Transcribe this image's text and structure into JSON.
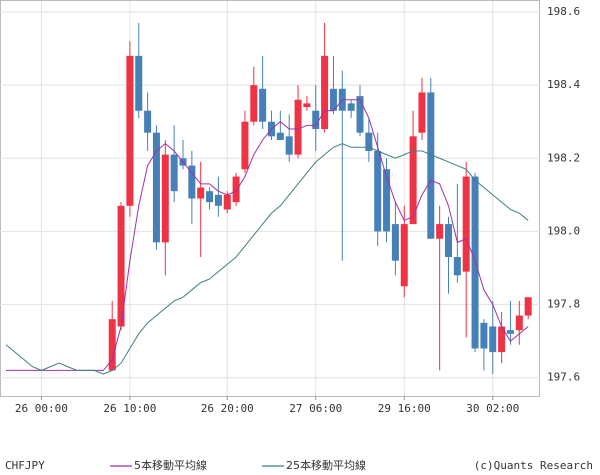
{
  "chart_data": {
    "type": "candlestick",
    "categories": [
      null,
      null,
      null,
      null,
      "26 00:00",
      null,
      null,
      null,
      null,
      null,
      null,
      null,
      null,
      null,
      "26 10:00",
      null,
      null,
      null,
      null,
      null,
      null,
      null,
      null,
      null,
      null,
      "26 20:00",
      null,
      null,
      null,
      null,
      null,
      null,
      null,
      null,
      null,
      "27 06:00",
      null,
      null,
      null,
      null,
      null,
      null,
      null,
      null,
      null,
      "29 16:00",
      null,
      null,
      null,
      null,
      null,
      null,
      null,
      null,
      null,
      "30 02:00",
      null,
      null,
      null,
      null
    ],
    "candles": {
      "up_color": "#ee3344",
      "down_color": "#4680b8",
      "open": [
        null,
        null,
        null,
        null,
        null,
        null,
        null,
        null,
        null,
        null,
        null,
        null,
        197.62,
        197.74,
        198.07,
        198.48,
        198.33,
        198.27,
        197.97,
        198.21,
        198.2,
        198.18,
        198.09,
        198.11,
        198.1,
        198.06,
        198.08,
        198.17,
        198.3,
        198.39,
        198.3,
        198.27,
        198.26,
        198.21,
        198.34,
        198.33,
        198.28,
        198.39,
        198.39,
        198.35,
        198.37,
        198.27,
        198.22,
        198.17,
        198.02,
        197.85,
        198.02,
        198.27,
        198.38,
        197.98,
        198.02,
        197.93,
        197.89,
        198.15,
        197.75,
        197.74,
        197.67,
        197.73,
        197.73,
        197.77
      ],
      "high": [
        null,
        null,
        null,
        null,
        null,
        null,
        null,
        null,
        null,
        null,
        null,
        null,
        197.81,
        198.08,
        198.52,
        198.57,
        198.38,
        198.29,
        198.25,
        198.29,
        198.25,
        198.22,
        198.19,
        198.12,
        198.15,
        198.11,
        198.16,
        198.33,
        198.45,
        198.48,
        198.33,
        198.33,
        198.32,
        198.4,
        198.37,
        198.4,
        198.57,
        198.48,
        198.44,
        198.36,
        198.4,
        198.31,
        198.27,
        198.2,
        198.08,
        198.07,
        198.33,
        198.42,
        198.42,
        198.07,
        198.04,
        198.13,
        198.19,
        198.16,
        197.76,
        197.81,
        197.78,
        197.81,
        197.81,
        197.82
      ],
      "low": [
        null,
        null,
        null,
        null,
        null,
        null,
        null,
        null,
        null,
        null,
        null,
        null,
        197.62,
        197.73,
        198.04,
        198.31,
        198.22,
        197.95,
        197.88,
        198.08,
        198.17,
        198.02,
        197.93,
        198.06,
        198.04,
        198.05,
        198.07,
        198.16,
        198.29,
        198.28,
        198.25,
        198.25,
        198.19,
        198.2,
        198.33,
        198.22,
        198.27,
        198.32,
        197.92,
        198.31,
        198.26,
        198.19,
        197.96,
        197.97,
        197.88,
        197.82,
        198.02,
        198.25,
        197.98,
        197.62,
        197.83,
        197.86,
        197.71,
        197.67,
        197.62,
        197.61,
        197.64,
        197.69,
        197.69,
        197.76
      ],
      "close": [
        null,
        null,
        null,
        null,
        null,
        null,
        null,
        null,
        null,
        null,
        null,
        null,
        197.76,
        198.07,
        198.48,
        198.33,
        198.27,
        197.97,
        198.21,
        198.11,
        198.18,
        198.09,
        198.12,
        198.08,
        198.07,
        198.1,
        198.15,
        198.3,
        198.4,
        198.3,
        198.26,
        198.25,
        198.21,
        198.36,
        198.35,
        198.28,
        198.48,
        198.33,
        198.33,
        198.33,
        198.27,
        198.22,
        198.0,
        198.0,
        197.92,
        198.02,
        198.26,
        198.38,
        197.98,
        198.02,
        197.93,
        197.88,
        198.15,
        197.68,
        197.68,
        197.67,
        197.74,
        197.72,
        197.77,
        197.82
      ]
    },
    "series": [
      {
        "name": "5本移動平均線",
        "color": "#a030a8",
        "values": [
          197.62,
          197.62,
          197.62,
          197.62,
          197.62,
          197.62,
          197.62,
          197.62,
          197.62,
          197.62,
          197.62,
          197.62,
          197.65,
          197.74,
          197.92,
          198.07,
          198.18,
          198.22,
          198.24,
          198.22,
          198.19,
          198.16,
          198.13,
          198.13,
          198.11,
          198.1,
          198.11,
          198.15,
          198.21,
          198.25,
          198.28,
          198.3,
          198.28,
          198.28,
          198.29,
          198.29,
          198.33,
          198.33,
          198.36,
          198.36,
          198.36,
          198.31,
          198.23,
          198.15,
          198.08,
          198.03,
          198.04,
          198.1,
          198.14,
          198.13,
          198.07,
          197.97,
          197.98,
          197.92,
          197.84,
          197.8,
          197.74,
          197.7,
          197.72,
          197.74
        ]
      },
      {
        "name": "25本移動平均線",
        "color": "#3a8080",
        "values": [
          197.69,
          197.67,
          197.65,
          197.63,
          197.62,
          197.63,
          197.64,
          197.63,
          197.62,
          197.62,
          197.62,
          197.61,
          197.62,
          197.64,
          197.68,
          197.72,
          197.75,
          197.77,
          197.79,
          197.81,
          197.82,
          197.84,
          197.86,
          197.87,
          197.89,
          197.91,
          197.93,
          197.96,
          197.99,
          198.02,
          198.05,
          198.07,
          198.1,
          198.13,
          198.16,
          198.19,
          198.21,
          198.23,
          198.24,
          198.23,
          198.23,
          198.23,
          198.22,
          198.21,
          198.2,
          198.21,
          198.22,
          198.22,
          198.21,
          198.2,
          198.19,
          198.18,
          198.17,
          198.14,
          198.12,
          198.1,
          198.08,
          198.06,
          198.05,
          198.03
        ]
      }
    ],
    "ylim": [
      197.55,
      198.63
    ],
    "yticks": [
      197.6,
      197.8,
      {
        "value": 198,
        "label": "198.0"
      },
      198.2,
      198.4,
      198.6
    ],
    "grid": true,
    "symbol": "CHFJPY",
    "credit": "(c)Quants Research"
  }
}
